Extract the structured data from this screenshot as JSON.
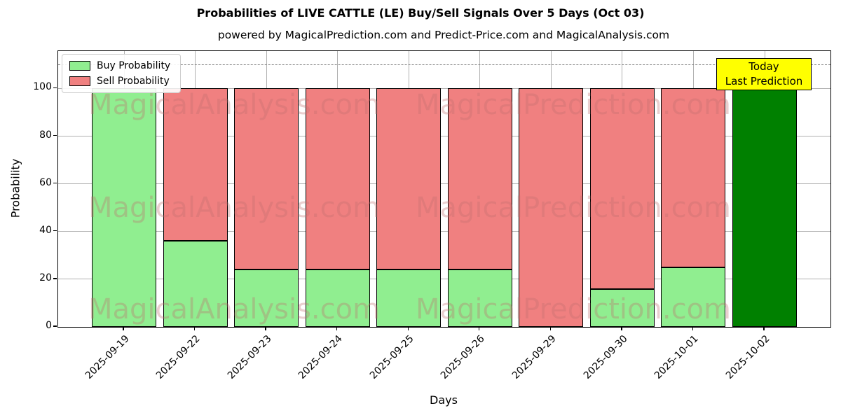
{
  "chart_data": {
    "type": "bar",
    "stacked": true,
    "title": "Probabilities of LIVE CATTLE (LE) Buy/Sell Signals Over 5 Days (Oct 03)",
    "subtitle": "powered by MagicalPrediction.com and Predict-Price.com and MagicalAnalysis.com",
    "xlabel": "Days",
    "ylabel": "Probability",
    "categories": [
      "2025-09-19",
      "2025-09-22",
      "2025-09-23",
      "2025-09-24",
      "2025-09-25",
      "2025-09-26",
      "2025-09-29",
      "2025-09-30",
      "2025-10-01",
      "2025-10-02"
    ],
    "series": [
      {
        "name": "Buy Probability",
        "color": "#90EE90",
        "values": [
          100,
          36,
          24,
          24,
          24,
          24,
          0,
          16,
          25,
          100
        ]
      },
      {
        "name": "Sell Probability",
        "color": "#F08080",
        "values": [
          0,
          64,
          76,
          76,
          76,
          76,
          100,
          84,
          75,
          0
        ]
      }
    ],
    "today_bar": {
      "index": 9,
      "color": "#008000",
      "value": 100
    },
    "yticks": [
      0,
      20,
      40,
      60,
      80,
      100
    ],
    "ylim": [
      0,
      115.7
    ],
    "dashed_line_y": 110,
    "grid": true,
    "legend_position": "upper left",
    "bar_edge_color": "#000000",
    "tick_label_rotation": 45
  },
  "annotation": {
    "line1": "Today",
    "line2": "Last Prediction",
    "bg_color": "#FFFF00"
  },
  "watermarks": {
    "left": "MagicalAnalysis.com",
    "right": "MagicalPrediction.com"
  },
  "colors": {
    "grid": "#b0b0b0",
    "dashed_line": "#7f7f7f",
    "spine": "#000000",
    "background": "#ffffff"
  }
}
